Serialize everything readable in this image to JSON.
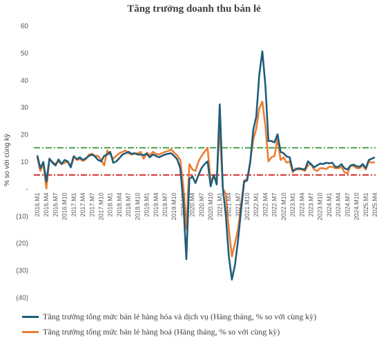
{
  "chart_data": {
    "type": "line",
    "title": "Tăng trưởng doanh thu bán lẻ",
    "ylabel": "% so với cùng kỳ",
    "ylim": [
      -40,
      60
    ],
    "yticks": [
      {
        "value": 60,
        "label": "60"
      },
      {
        "value": 50,
        "label": "50"
      },
      {
        "value": 40,
        "label": "40"
      },
      {
        "value": 30,
        "label": "30"
      },
      {
        "value": 20,
        "label": "20"
      },
      {
        "value": 10,
        "label": "10"
      },
      {
        "value": 0,
        "label": "-"
      },
      {
        "value": -10,
        "label": "(10)"
      },
      {
        "value": -20,
        "label": "(20)"
      },
      {
        "value": -30,
        "label": "(30)"
      },
      {
        "value": -40,
        "label": "(40)"
      }
    ],
    "x_start": "2016.M1",
    "x_count": 112,
    "tick_labels": [
      "2016.M1",
      "2016.M4",
      "2016.M7",
      "2016.M10",
      "2017.M1",
      "2017.M4",
      "2017.M7",
      "2017.M10",
      "2018.M1",
      "2018.M4",
      "2018.M7",
      "2018.M10",
      "2019.M1",
      "2019.M4",
      "2019.M7",
      "2019.M10",
      "2020.M1",
      "2020.M4",
      "2020.M7",
      "2020.M10",
      "2021.M1",
      "2021.M4",
      "2021.M7",
      "2021.M10",
      "2022.M1",
      "2022.M4",
      "2022.M7",
      "2022.M10",
      "2023.M1",
      "2023.M4",
      "2023.M7",
      "2023.M10",
      "2024.M1",
      "2024.M4",
      "2024.M7",
      "2024.M10",
      "2025.M1",
      "2025.M4"
    ],
    "reference_lines": [
      {
        "value": 15,
        "color": "#3a9b3a",
        "style": "dash-dot"
      },
      {
        "value": 5,
        "color": "#cc1f1f",
        "style": "dash-dot"
      }
    ],
    "series": [
      {
        "name": "Tăng trưởng tổng mức bán lẻ hàng hóa và dịch vụ (Hàng tháng, % so với cùng kỳ)",
        "color": "#1f5c7a",
        "values": [
          12.2,
          7.5,
          9.8,
          2.5,
          11.0,
          9.5,
          8.5,
          10.7,
          9.0,
          10.5,
          10.0,
          7.8,
          11.8,
          10.8,
          11.5,
          10.5,
          11.2,
          12.0,
          12.5,
          11.8,
          10.5,
          10.0,
          12.0,
          12.5,
          13.5,
          9.5,
          10.0,
          11.2,
          12.5,
          13.0,
          13.5,
          12.8,
          13.0,
          12.5,
          12.5,
          12.3,
          12.8,
          11.5,
          12.5,
          12.0,
          11.5,
          12.0,
          12.5,
          12.8,
          13.0,
          12.0,
          10.8,
          7.5,
          -5.0,
          -26.0,
          3.5,
          4.5,
          2.0,
          5.0,
          7.5,
          9.0,
          10.0,
          0.8,
          5.0,
          1.5,
          31.0,
          0.5,
          -10.0,
          -25.0,
          -33.5,
          -28.0,
          -19.0,
          -8.0,
          2.5,
          3.0,
          9.5,
          21.5,
          26.5,
          42.0,
          50.5,
          38.0,
          17.5,
          17.5,
          17.0,
          20.0,
          13.5,
          13.0,
          11.8,
          11.5,
          6.5,
          7.0,
          7.5,
          7.2,
          7.0,
          10.0,
          9.0,
          7.8,
          8.5,
          9.2,
          9.0,
          9.5,
          9.3,
          9.5,
          8.0,
          8.0,
          9.0,
          7.5,
          7.0,
          8.5,
          8.8,
          8.2,
          8.0,
          9.0,
          7.5,
          10.5,
          11.0,
          11.5
        ]
      },
      {
        "name": "Tăng trưởng tổng mức bán lẻ hàng hoá (Hàng tháng, % so với cùng kỳ)",
        "color": "#ed7d31",
        "values": [
          11.5,
          6.5,
          9.0,
          0.0,
          11.0,
          9.8,
          9.0,
          10.0,
          9.0,
          9.5,
          9.8,
          8.5,
          12.0,
          10.5,
          10.8,
          10.2,
          10.8,
          12.5,
          12.8,
          12.0,
          12.0,
          10.5,
          8.5,
          14.0,
          12.5,
          11.0,
          12.0,
          13.0,
          13.5,
          14.0,
          13.0,
          12.5,
          12.8,
          13.0,
          13.5,
          11.0,
          13.2,
          12.2,
          13.5,
          12.8,
          12.5,
          13.0,
          13.5,
          13.8,
          14.5,
          13.2,
          12.2,
          10.5,
          1.0,
          -15.0,
          9.0,
          7.0,
          6.5,
          10.0,
          12.0,
          13.5,
          15.0,
          2.5,
          4.5,
          3.5,
          23.0,
          0.0,
          -2.0,
          -15.0,
          -25.0,
          -20.0,
          -15.0,
          -6.0,
          3.0,
          3.5,
          10.0,
          18.0,
          22.0,
          29.5,
          32.0,
          23.0,
          10.0,
          11.5,
          12.0,
          18.5,
          10.5,
          11.5,
          9.5,
          10.0,
          6.0,
          7.5,
          7.0,
          7.0,
          6.5,
          8.5,
          9.0,
          7.0,
          6.5,
          7.5,
          7.5,
          7.2,
          8.0,
          8.0,
          7.5,
          7.5,
          8.0,
          6.0,
          5.5,
          8.5,
          8.3,
          7.5,
          7.5,
          8.5,
          7.0,
          10.0,
          9.5,
          9.8
        ]
      }
    ]
  }
}
